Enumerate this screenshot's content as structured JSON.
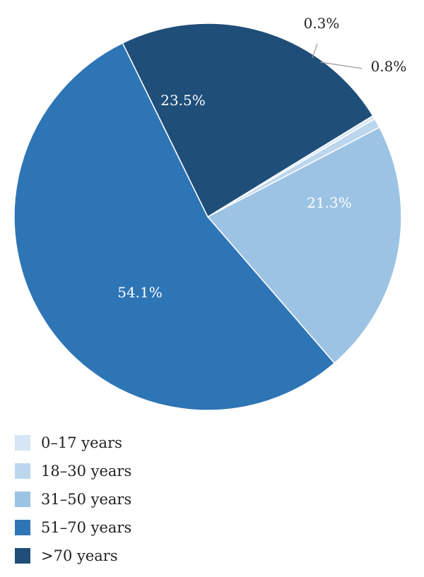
{
  "chart_data": {
    "type": "pie",
    "slices": [
      {
        "label": "0–17 years",
        "value": 0.3,
        "text": "0.3%",
        "color": "#d6e6f4"
      },
      {
        "label": "18–30 years",
        "value": 0.8,
        "text": "0.8%",
        "color": "#bcd6ee"
      },
      {
        "label": "31–50 years",
        "value": 21.3,
        "text": "21.3%",
        "color": "#9cc3e4"
      },
      {
        "label": "51–70 years",
        "value": 54.1,
        "text": "54.1%",
        "color": "#2e75b6"
      },
      {
        "label": ">70 years",
        "value": 23.5,
        "text": "23.5%",
        "color": "#1f4e79"
      }
    ],
    "legend_position": "bottom-left"
  }
}
